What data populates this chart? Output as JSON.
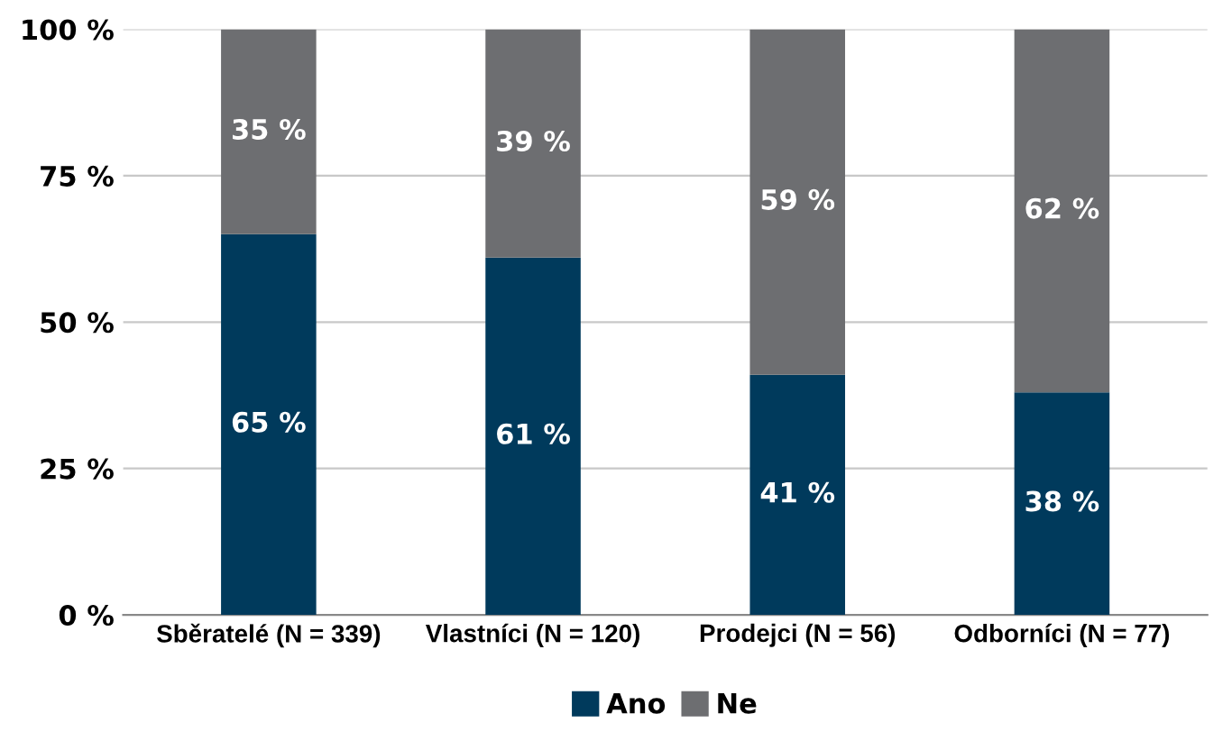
{
  "chart_data": {
    "type": "bar",
    "stacked": true,
    "categories": [
      "Sběratelé (N = 339)",
      "Vlastníci (N = 120)",
      "Prodejci (N = 56)",
      "Odborníci (N = 77)"
    ],
    "series": [
      {
        "name": "Ano",
        "color": "#003a5c",
        "values": [
          65,
          61,
          41,
          38
        ],
        "value_labels": [
          "65 %",
          "61 %",
          "41 %",
          "38 %"
        ]
      },
      {
        "name": "Ne",
        "color": "#6d6e71",
        "values": [
          35,
          39,
          59,
          62
        ],
        "value_labels": [
          "35 %",
          "39 %",
          "59 %",
          "62 %"
        ]
      }
    ],
    "ylim": [
      0,
      100
    ],
    "yticks": [
      {
        "value": 0,
        "label": "0 %"
      },
      {
        "value": 25,
        "label": "25 %"
      },
      {
        "value": 50,
        "label": "50 %"
      },
      {
        "value": 75,
        "label": "75 %"
      },
      {
        "value": 100,
        "label": "100 %"
      }
    ],
    "grid": "y",
    "legend": "bottom"
  }
}
